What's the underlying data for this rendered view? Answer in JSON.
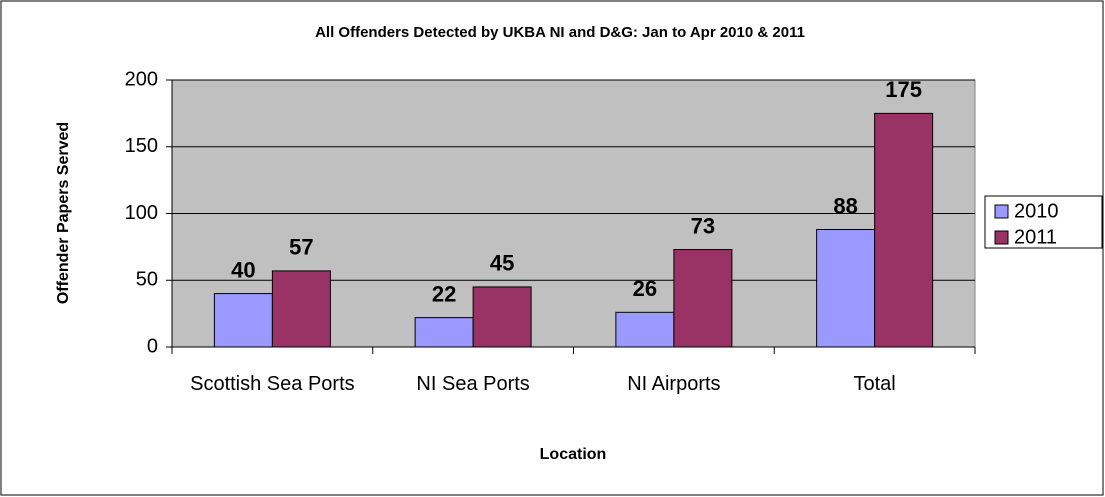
{
  "chart_data": {
    "type": "bar",
    "title": "All Offenders Detected by UKBA NI and D&G: Jan to Apr 2010 & 2011",
    "x_label": "Location",
    "y_label": "Offender Papers Served",
    "categories": [
      "Scottish Sea Ports",
      "NI Sea Ports",
      "NI Airports",
      "Total"
    ],
    "series": [
      {
        "name": "2010",
        "color": "#9999ff",
        "values": [
          40,
          22,
          26,
          88
        ]
      },
      {
        "name": "2011",
        "color": "#993366",
        "values": [
          57,
          45,
          73,
          175
        ]
      }
    ],
    "ylim": [
      0,
      200
    ],
    "yticks": [
      0,
      50,
      100,
      150,
      200
    ],
    "grid": true,
    "legend": "right"
  }
}
